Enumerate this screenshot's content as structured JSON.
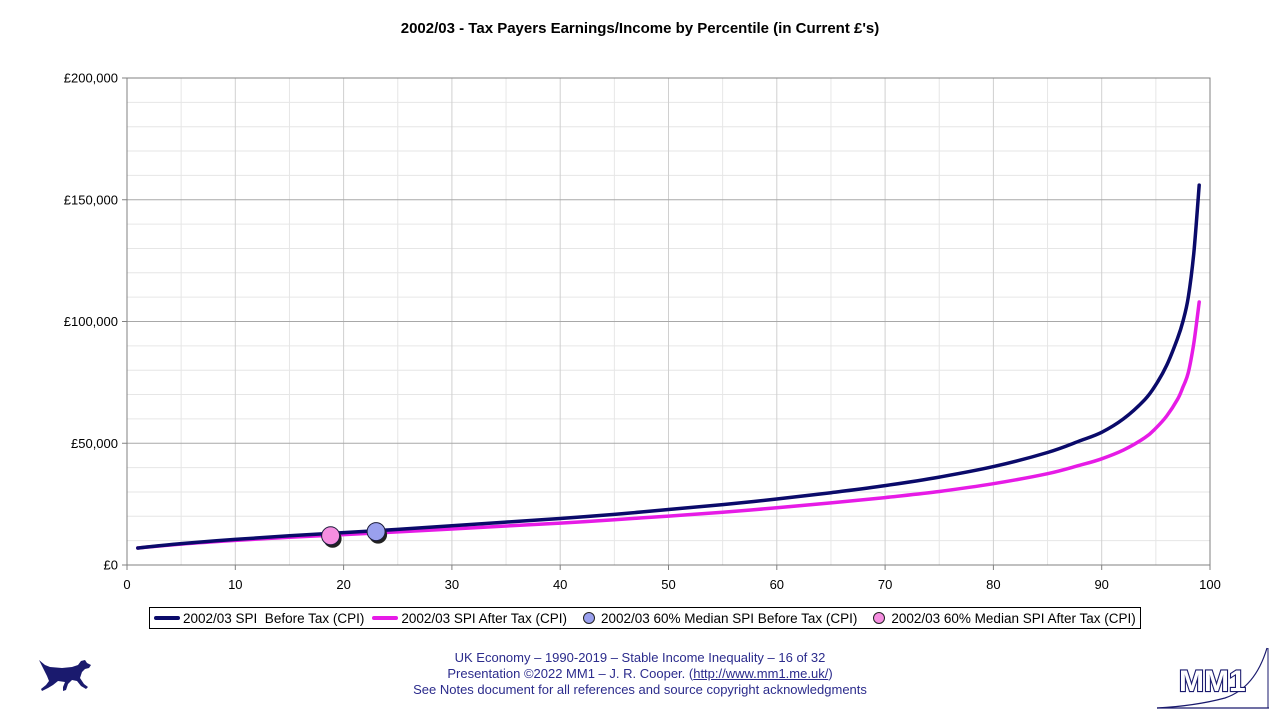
{
  "chart_data": {
    "type": "line",
    "title": "2002/03 - Tax Payers Earnings/Income by Percentile (in Current £'s)",
    "xlabel": "",
    "ylabel": "",
    "xlim": [
      0,
      100
    ],
    "ylim": [
      0,
      200000
    ],
    "x_ticks": [
      "0",
      "10",
      "20",
      "30",
      "40",
      "50",
      "60",
      "70",
      "80",
      "90",
      "100"
    ],
    "y_ticks": [
      "£0",
      "£50,000",
      "£100,000",
      "£150,000",
      "£200,000"
    ],
    "grid": true,
    "legend_position": "bottom",
    "series": [
      {
        "name": "2002/03 SPI  Before Tax (CPI)",
        "color": "#0a0a6a",
        "x": [
          1,
          5,
          10,
          15,
          20,
          25,
          30,
          35,
          40,
          45,
          50,
          55,
          60,
          65,
          70,
          75,
          80,
          85,
          88,
          90,
          92,
          94,
          95,
          96,
          97,
          97.5,
          98,
          98.5,
          99
        ],
        "y": [
          7000,
          8800,
          10500,
          12000,
          13300,
          14600,
          16100,
          17600,
          19100,
          20800,
          22800,
          24800,
          27100,
          29700,
          32600,
          36100,
          40400,
          46200,
          51000,
          54500,
          60000,
          68000,
          74000,
          82000,
          93000,
          100000,
          110000,
          128000,
          156000
        ]
      },
      {
        "name": "2002/03 SPI After Tax (CPI)",
        "color": "#e61be6",
        "x": [
          1,
          5,
          10,
          15,
          20,
          25,
          30,
          35,
          40,
          45,
          50,
          55,
          60,
          65,
          70,
          75,
          80,
          85,
          88,
          90,
          92,
          94,
          95,
          96,
          97,
          97.5,
          98,
          98.5,
          99
        ],
        "y": [
          7000,
          8600,
          10100,
          11400,
          12500,
          13600,
          14800,
          16000,
          17200,
          18600,
          20100,
          21700,
          23500,
          25500,
          27700,
          30200,
          33400,
          37500,
          41000,
          43600,
          47200,
          52300,
          56200,
          61200,
          68000,
          73000,
          79000,
          91000,
          108000
        ]
      },
      {
        "name": "2002/03 60% Median SPI Before Tax (CPI)",
        "color": "#9aa0ee",
        "marker": "circle",
        "x": [
          23
        ],
        "y": [
          13700
        ]
      },
      {
        "name": "2002/03 60% Median SPI After Tax (CPI)",
        "color": "#f58ee0",
        "marker": "circle",
        "x": [
          18.8
        ],
        "y": [
          12000
        ]
      }
    ]
  },
  "footer": {
    "line1": "UK Economy – 1990-2019 – Stable Income Inequality – 16 of 32",
    "line2_prefix": "Presentation ©2022 MM1 – J. R. Cooper. (",
    "line2_link": "http://www.mm1.me.uk/",
    "line2_suffix": ")",
    "line3": "See Notes document for all references and source copyright acknowledgments"
  },
  "logo": {
    "text": "MM1",
    "dog_icon": "running-dog-icon",
    "color": "#1a1a6e"
  }
}
